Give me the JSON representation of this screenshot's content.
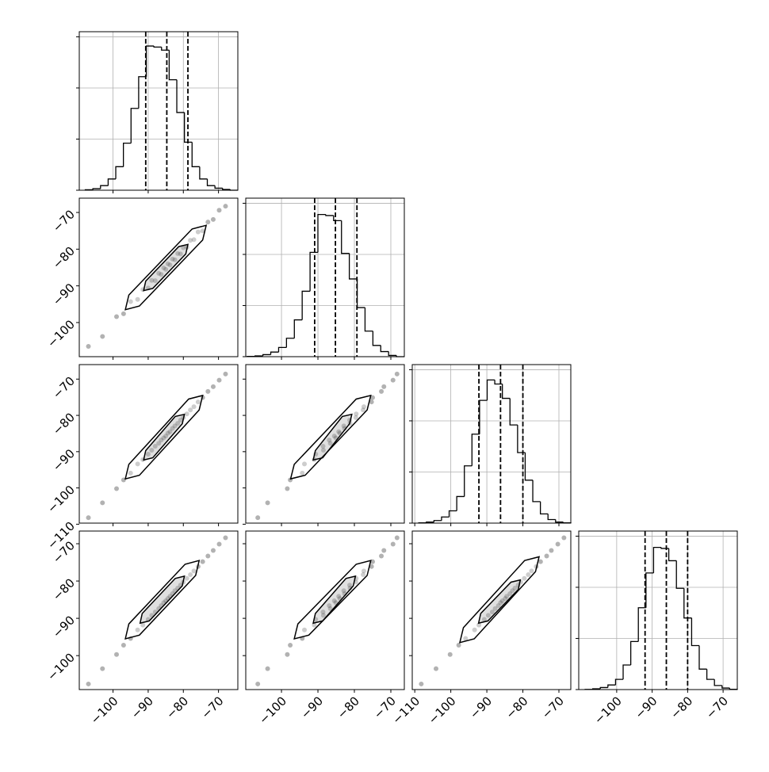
{
  "chart_data": {
    "type": "corner",
    "grid": true,
    "color": "#000000",
    "count_ylim": [
      0,
      1550
    ],
    "count_ticks": [
      0,
      500,
      1000,
      1500
    ],
    "params": [
      {
        "xlim": [
          -109.6,
          -64.5
        ],
        "xticks": [
          {
            "value": -100,
            "label": "−100"
          },
          {
            "value": -90,
            "label": "−90"
          },
          {
            "value": -80,
            "label": "−80"
          },
          {
            "value": -70,
            "label": "−70"
          }
        ],
        "bins": [
          -107.9,
          -105.73,
          -103.56,
          -101.39,
          -99.22,
          -97.05,
          -94.88,
          -92.71,
          -90.54,
          -88.37,
          -86.2,
          -84.03,
          -81.86,
          -79.69,
          -77.52,
          -75.35,
          -73.18,
          -71.01,
          -68.84,
          -66.67,
          -64.5
        ],
        "counts": [
          5,
          15,
          45,
          110,
          230,
          460,
          800,
          1110,
          1410,
          1400,
          1370,
          1080,
          760,
          470,
          230,
          110,
          45,
          20,
          8,
          0
        ],
        "quantiles": [
          -90.7,
          -84.7,
          -78.7
        ]
      },
      {
        "xlim": [
          -109.8,
          -66.3
        ],
        "xticks": [
          {
            "value": -100,
            "label": "−100"
          },
          {
            "value": -90,
            "label": "−90"
          },
          {
            "value": -80,
            "label": "−80"
          },
          {
            "value": -70,
            "label": "−70"
          }
        ],
        "ylim": [
          -109.3,
          -66.1
        ],
        "yticks": [
          {
            "value": -100,
            "label": "−100"
          },
          {
            "value": -90,
            "label": "−90"
          },
          {
            "value": -80,
            "label": "−80"
          },
          {
            "value": -70,
            "label": "−70"
          }
        ],
        "bins": [
          -109.4,
          -107.25,
          -105.09,
          -102.94,
          -100.78,
          -98.63,
          -96.47,
          -94.32,
          -92.16,
          -90.01,
          -87.85,
          -85.7,
          -83.54,
          -81.39,
          -79.23,
          -77.08,
          -74.92,
          -72.77,
          -70.61,
          -68.46,
          -66.3
        ],
        "counts": [
          3,
          8,
          20,
          45,
          90,
          180,
          360,
          640,
          1020,
          1390,
          1380,
          1330,
          1010,
          760,
          480,
          250,
          110,
          50,
          12,
          0
        ],
        "quantiles": [
          -90.9,
          -85.2,
          -79.3
        ]
      },
      {
        "xlim": [
          -110.7,
          -66.7
        ],
        "xticks": [
          {
            "value": -110,
            "label": "−110"
          },
          {
            "value": -100,
            "label": "−100"
          },
          {
            "value": -90,
            "label": "−90"
          },
          {
            "value": -80,
            "label": "−80"
          },
          {
            "value": -70,
            "label": "−70"
          }
        ],
        "ylim": [
          -109.7,
          -66.0
        ],
        "yticks": [
          {
            "value": -110,
            "label": "−110"
          },
          {
            "value": -100,
            "label": "−100"
          },
          {
            "value": -90,
            "label": "−90"
          },
          {
            "value": -80,
            "label": "−80"
          },
          {
            "value": -70,
            "label": "−70"
          }
        ],
        "bins": [
          -108.9,
          -106.79,
          -104.68,
          -102.57,
          -100.46,
          -98.35,
          -96.24,
          -94.13,
          -92.02,
          -89.91,
          -87.8,
          -85.69,
          -83.58,
          -81.47,
          -79.36,
          -77.25,
          -75.14,
          -73.03,
          -70.92,
          -68.81,
          -66.7
        ],
        "counts": [
          3,
          10,
          25,
          60,
          120,
          260,
          560,
          870,
          1200,
          1400,
          1360,
          1220,
          960,
          690,
          420,
          210,
          90,
          35,
          10,
          3
        ],
        "quantiles": [
          -92.2,
          -86.2,
          -80.0
        ]
      },
      {
        "xlim": [
          -110.7,
          -66.0
        ],
        "xticks": [
          {
            "value": -100,
            "label": "−100"
          },
          {
            "value": -90,
            "label": "−90"
          },
          {
            "value": -80,
            "label": "−80"
          },
          {
            "value": -70,
            "label": "−70"
          }
        ],
        "ylim": [
          -109.1,
          -66.6
        ],
        "yticks": [
          {
            "value": -100,
            "label": "−100"
          },
          {
            "value": -90,
            "label": "−90"
          },
          {
            "value": -80,
            "label": "−80"
          },
          {
            "value": -70,
            "label": "−70"
          }
        ],
        "bins": [
          -108.9,
          -106.76,
          -104.61,
          -102.47,
          -100.32,
          -98.18,
          -96.03,
          -93.89,
          -91.74,
          -89.6,
          -87.45,
          -85.31,
          -83.16,
          -81.02,
          -78.87,
          -76.73,
          -74.58,
          -72.44,
          -70.29,
          -68.15,
          -66.0
        ],
        "counts": [
          2,
          8,
          20,
          45,
          100,
          240,
          470,
          800,
          1140,
          1390,
          1380,
          1260,
          990,
          700,
          430,
          200,
          100,
          40,
          15,
          3
        ],
        "quantiles": [
          -92.0,
          -86.0,
          -80.0
        ]
      }
    ],
    "samples": [
      [
        -107,
        -103,
        -99,
        -97,
        -95,
        -93,
        -91.5,
        -90,
        -89,
        -88,
        -87,
        -86.3,
        -85.6,
        -85,
        -84.4,
        -83.8,
        -83.1,
        -82.4,
        -81.6,
        -80.8,
        -80,
        -79,
        -78,
        -77,
        -75.8,
        -74.5,
        -73,
        -71.5,
        -69.8,
        -68
      ],
      [
        -106.5,
        -103.8,
        -98.4,
        -97.6,
        -94.3,
        -93.7,
        -91,
        -90.6,
        -88.5,
        -88.6,
        -86.6,
        -86.9,
        -85.1,
        -85.5,
        -84,
        -84.3,
        -82.7,
        -82.9,
        -81.2,
        -81.3,
        -79.6,
        -79.5,
        -77.6,
        -77.4,
        -75.3,
        -75,
        -72.6,
        -71.9,
        -69.4,
        -68.3
      ],
      [
        -108.2,
        -104.1,
        -100.2,
        -97.8,
        -95.9,
        -93.4,
        -92.2,
        -90.7,
        -89.6,
        -88.5,
        -87.7,
        -86.8,
        -86.2,
        -85.7,
        -84.9,
        -84.5,
        -83.6,
        -82.9,
        -82.2,
        -81.3,
        -80.6,
        -79.6,
        -78.5,
        -77.6,
        -76.3,
        -75.1,
        -73.4,
        -72.1,
        -70.3,
        -68.6
      ],
      [
        -107.6,
        -103.5,
        -99.7,
        -97.2,
        -95.4,
        -93.1,
        -91.8,
        -90.3,
        -89.2,
        -88.3,
        -87.4,
        -86.6,
        -85.8,
        -85.3,
        -84.7,
        -84.1,
        -83.4,
        -82.6,
        -81.9,
        -81.1,
        -80.3,
        -79.3,
        -78.3,
        -77.3,
        -76.1,
        -74.8,
        -73.3,
        -71.8,
        -70.1,
        -68.4
      ]
    ],
    "contours": [
      [
        [
          {
            "x": [
              -96.5,
              -95.5,
              -77.5,
              -73.5,
              -74.5,
              -92.5
            ],
            "y": [
              -96.5,
              -92.5,
              -74.5,
              -73.5,
              -77.5,
              -95.5
            ]
          },
          {
            "x": [
              -91.3,
              -90.7,
              -81.3,
              -78.7,
              -79.3,
              -88.7
            ],
            "y": [
              -91.3,
              -88.7,
              -79.3,
              -78.7,
              -81.3,
              -90.7
            ]
          }
        ]
      ],
      [
        [
          {
            "x": [
              -96.5,
              -95.5,
              -78.5,
              -74.5,
              -75.5,
              -92.5
            ],
            "y": [
              -97.5,
              -93.5,
              -75.5,
              -74.5,
              -78.5,
              -96.5
            ]
          },
          {
            "x": [
              -91.3,
              -90.7,
              -82.3,
              -79.7,
              -80.3,
              -88.7
            ],
            "y": [
              -92.3,
              -89.7,
              -80.3,
              -79.7,
              -82.3,
              -91.7
            ]
          }
        ],
        [
          {
            "x": [
              -97.5,
              -96.5,
              -79.5,
              -75.5,
              -76.5,
              -93.5
            ],
            "y": [
              -97.5,
              -93.5,
              -75.5,
              -74.5,
              -78.5,
              -96.5
            ]
          },
          {
            "x": [
              -91.3,
              -90.7,
              -83.3,
              -80.7,
              -81.3,
              -88.7
            ],
            "y": [
              -92.3,
              -89.7,
              -80.3,
              -79.7,
              -82.3,
              -91.7
            ]
          }
        ]
      ],
      [
        [
          {
            "x": [
              -96.5,
              -95.5,
              -79.5,
              -75.5,
              -76.5,
              -92.5
            ],
            "y": [
              -95.5,
              -91.5,
              -75.5,
              -74.5,
              -78.5,
              -94.5
            ]
          },
          {
            "x": [
              -92.3,
              -91.7,
              -82.3,
              -79.7,
              -80.3,
              -89.7
            ],
            "y": [
              -91.3,
              -88.7,
              -79.3,
              -78.7,
              -81.3,
              -90.7
            ]
          }
        ],
        [
          {
            "x": [
              -96.5,
              -95.5,
              -79.5,
              -75.5,
              -76.5,
              -92.5
            ],
            "y": [
              -95.5,
              -91.5,
              -75.5,
              -74.5,
              -78.5,
              -94.5
            ]
          },
          {
            "x": [
              -91.3,
              -90.7,
              -82.3,
              -79.7,
              -80.3,
              -88.7
            ],
            "y": [
              -91.3,
              -88.7,
              -79.3,
              -78.7,
              -81.3,
              -90.7
            ]
          }
        ],
        [
          {
            "x": [
              -97.5,
              -96.5,
              -79.5,
              -75.5,
              -76.5,
              -93.5
            ],
            "y": [
              -96.5,
              -92.5,
              -74.5,
              -73.5,
              -77.5,
              -95.5
            ]
          },
          {
            "x": [
              -92.3,
              -91.7,
              -83.3,
              -80.7,
              -81.3,
              -89.7
            ],
            "y": [
              -91.3,
              -88.7,
              -80.3,
              -79.7,
              -82.3,
              -90.7
            ]
          }
        ]
      ]
    ]
  }
}
